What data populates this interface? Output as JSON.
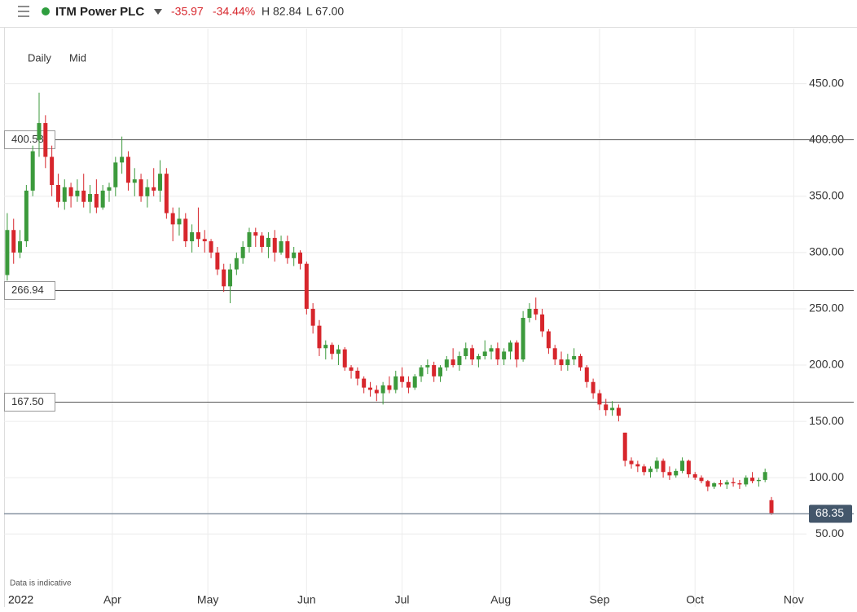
{
  "chart_data": {
    "type": "candlestick",
    "header": {
      "name": "ITM Power PLC",
      "change": -35.97,
      "change_pct": "-34.44%",
      "high": "H 82.84",
      "low": "L 67.00"
    },
    "interval": "Daily",
    "price_type": "Mid",
    "note": "Data is indicative",
    "x_year_label": "2022",
    "up_color": "#3c9a3c",
    "down_color": "#d7262c",
    "xlim": [
      57,
      309
    ],
    "ylim": [
      -15,
      499
    ],
    "xticks": [
      {
        "value": 91,
        "label": "Apr"
      },
      {
        "value": 121,
        "label": "May"
      },
      {
        "value": 152,
        "label": "Jun"
      },
      {
        "value": 182,
        "label": "Jul"
      },
      {
        "value": 213,
        "label": "Aug"
      },
      {
        "value": 244,
        "label": "Sep"
      },
      {
        "value": 274,
        "label": "Oct"
      },
      {
        "value": 305,
        "label": "Nov"
      }
    ],
    "yticks": [
      {
        "value": 50,
        "label": "50.00"
      },
      {
        "value": 100,
        "label": "100.00"
      },
      {
        "value": 150,
        "label": "150.00"
      },
      {
        "value": 200,
        "label": "200.00"
      },
      {
        "value": 250,
        "label": "250.00"
      },
      {
        "value": 300,
        "label": "300.00"
      },
      {
        "value": 350,
        "label": "350.00"
      },
      {
        "value": 400,
        "label": "400.00"
      },
      {
        "value": 450,
        "label": "450.00"
      }
    ],
    "grid": true,
    "levels": [
      400.58,
      266.94,
      {
        "value": 167.5,
        "label": "167.50"
      }
    ],
    "last_price": 68.35,
    "ohlc": [
      [
        58,
        280,
        335,
        275,
        320
      ],
      [
        60,
        320,
        330,
        290,
        300
      ],
      [
        62,
        300,
        320,
        295,
        310
      ],
      [
        64,
        310,
        360,
        305,
        355
      ],
      [
        66,
        355,
        395,
        350,
        390
      ],
      [
        68,
        400,
        442,
        385,
        415
      ],
      [
        70,
        415,
        422,
        375,
        385
      ],
      [
        72,
        385,
        395,
        350,
        360
      ],
      [
        74,
        360,
        370,
        340,
        345
      ],
      [
        76,
        345,
        365,
        338,
        358
      ],
      [
        78,
        358,
        362,
        340,
        350
      ],
      [
        80,
        350,
        365,
        345,
        355
      ],
      [
        82,
        355,
        370,
        340,
        345
      ],
      [
        84,
        345,
        360,
        335,
        352
      ],
      [
        86,
        352,
        365,
        335,
        340
      ],
      [
        88,
        340,
        360,
        338,
        355
      ],
      [
        90,
        355,
        362,
        345,
        358
      ],
      [
        92,
        358,
        385,
        350,
        380
      ],
      [
        94,
        380,
        403,
        370,
        385
      ],
      [
        96,
        385,
        390,
        355,
        362
      ],
      [
        98,
        362,
        375,
        350,
        365
      ],
      [
        100,
        365,
        370,
        345,
        350
      ],
      [
        102,
        350,
        365,
        340,
        358
      ],
      [
        104,
        358,
        375,
        350,
        355
      ],
      [
        106,
        355,
        382,
        345,
        370
      ],
      [
        108,
        370,
        375,
        330,
        335
      ],
      [
        110,
        335,
        340,
        310,
        325
      ],
      [
        112,
        325,
        340,
        315,
        330
      ],
      [
        114,
        330,
        335,
        305,
        310
      ],
      [
        116,
        310,
        325,
        300,
        318
      ],
      [
        118,
        318,
        340,
        305,
        312
      ],
      [
        120,
        312,
        320,
        300,
        310
      ],
      [
        122,
        310,
        312,
        295,
        300
      ],
      [
        124,
        300,
        305,
        280,
        285
      ],
      [
        126,
        285,
        290,
        265,
        270
      ],
      [
        128,
        270,
        290,
        255,
        285
      ],
      [
        130,
        285,
        300,
        280,
        295
      ],
      [
        132,
        295,
        310,
        290,
        305
      ],
      [
        134,
        305,
        322,
        300,
        318
      ],
      [
        136,
        318,
        322,
        305,
        315
      ],
      [
        138,
        315,
        318,
        300,
        305
      ],
      [
        140,
        305,
        318,
        295,
        313
      ],
      [
        142,
        313,
        320,
        292,
        300
      ],
      [
        144,
        300,
        315,
        298,
        310
      ],
      [
        146,
        310,
        315,
        290,
        295
      ],
      [
        148,
        295,
        305,
        288,
        300
      ],
      [
        150,
        300,
        302,
        285,
        290
      ],
      [
        152,
        290,
        292,
        245,
        250
      ],
      [
        154,
        250,
        255,
        228,
        235
      ],
      [
        156,
        235,
        240,
        208,
        215
      ],
      [
        158,
        215,
        222,
        205,
        218
      ],
      [
        160,
        218,
        220,
        205,
        210
      ],
      [
        162,
        210,
        218,
        200,
        214
      ],
      [
        164,
        214,
        216,
        195,
        198
      ],
      [
        166,
        198,
        200,
        188,
        195
      ],
      [
        168,
        195,
        198,
        182,
        188
      ],
      [
        170,
        188,
        190,
        175,
        180
      ],
      [
        172,
        180,
        185,
        172,
        178
      ],
      [
        174,
        178,
        182,
        168,
        175
      ],
      [
        176,
        175,
        185,
        165,
        182
      ],
      [
        178,
        182,
        190,
        175,
        178
      ],
      [
        180,
        178,
        195,
        175,
        190
      ],
      [
        182,
        190,
        198,
        180,
        185
      ],
      [
        184,
        185,
        190,
        175,
        180
      ],
      [
        186,
        180,
        192,
        178,
        190
      ],
      [
        188,
        190,
        200,
        185,
        198
      ],
      [
        190,
        198,
        205,
        192,
        200
      ],
      [
        192,
        200,
        203,
        185,
        190
      ],
      [
        194,
        190,
        200,
        185,
        198
      ],
      [
        196,
        198,
        208,
        195,
        205
      ],
      [
        198,
        205,
        215,
        198,
        200
      ],
      [
        200,
        200,
        212,
        195,
        208
      ],
      [
        202,
        208,
        220,
        205,
        215
      ],
      [
        204,
        215,
        218,
        200,
        205
      ],
      [
        206,
        205,
        210,
        198,
        208
      ],
      [
        208,
        208,
        222,
        205,
        212
      ],
      [
        210,
        212,
        218,
        205,
        215
      ],
      [
        212,
        215,
        220,
        200,
        205
      ],
      [
        214,
        205,
        215,
        200,
        212
      ],
      [
        216,
        212,
        222,
        205,
        220
      ],
      [
        218,
        220,
        222,
        198,
        205
      ],
      [
        220,
        205,
        248,
        203,
        242
      ],
      [
        222,
        242,
        255,
        238,
        250
      ],
      [
        224,
        250,
        260,
        240,
        245
      ],
      [
        226,
        245,
        250,
        225,
        230
      ],
      [
        228,
        230,
        232,
        210,
        215
      ],
      [
        230,
        215,
        218,
        200,
        205
      ],
      [
        232,
        205,
        212,
        195,
        200
      ],
      [
        234,
        200,
        210,
        195,
        205
      ],
      [
        236,
        205,
        215,
        200,
        208
      ],
      [
        238,
        208,
        210,
        195,
        198
      ],
      [
        240,
        198,
        200,
        180,
        185
      ],
      [
        242,
        185,
        188,
        170,
        175
      ],
      [
        244,
        175,
        178,
        160,
        165
      ],
      [
        246,
        165,
        170,
        155,
        160
      ],
      [
        248,
        160,
        168,
        155,
        162
      ],
      [
        250,
        162,
        165,
        150,
        155
      ],
      [
        252,
        140,
        140,
        110,
        115
      ],
      [
        254,
        115,
        118,
        108,
        112
      ],
      [
        256,
        112,
        115,
        105,
        110
      ],
      [
        258,
        110,
        112,
        102,
        105
      ],
      [
        260,
        105,
        110,
        100,
        108
      ],
      [
        262,
        108,
        118,
        105,
        115
      ],
      [
        264,
        115,
        117,
        100,
        105
      ],
      [
        266,
        105,
        110,
        98,
        102
      ],
      [
        268,
        102,
        108,
        100,
        106
      ],
      [
        270,
        106,
        118,
        104,
        115
      ],
      [
        272,
        115,
        116,
        100,
        103
      ],
      [
        274,
        103,
        105,
        98,
        100
      ],
      [
        276,
        100,
        102,
        95,
        97
      ],
      [
        278,
        97,
        98,
        88,
        92
      ],
      [
        280,
        92,
        96,
        90,
        95
      ],
      [
        282,
        95,
        98,
        92,
        94
      ],
      [
        284,
        94,
        98,
        90,
        96
      ],
      [
        286,
        96,
        100,
        92,
        95
      ],
      [
        288,
        95,
        98,
        90,
        94
      ],
      [
        290,
        94,
        102,
        92,
        100
      ],
      [
        292,
        100,
        105,
        95,
        97
      ],
      [
        294,
        97,
        100,
        92,
        98
      ],
      [
        296,
        98,
        108,
        96,
        105
      ],
      [
        298,
        80,
        82.84,
        67,
        68.35
      ]
    ]
  }
}
